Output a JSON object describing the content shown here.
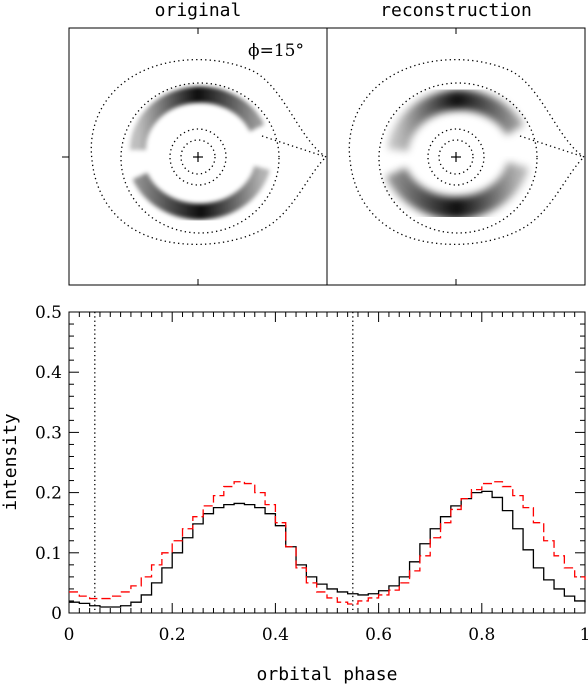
{
  "images": {
    "left_title": "original",
    "right_title": "reconstruction",
    "phase_annotation": "ϕ=15°"
  },
  "chart_data": {
    "type": "line",
    "title": "",
    "xlabel": "orbital phase",
    "ylabel": "intensity",
    "xlim": [
      0,
      1
    ],
    "ylim": [
      0,
      0.5
    ],
    "x_ticks": [
      "0",
      "0.2",
      "0.4",
      "0.6",
      "0.8",
      "1"
    ],
    "y_ticks": [
      "0",
      "0.1",
      "0.2",
      "0.3",
      "0.4",
      "0.5"
    ],
    "vertical_markers": [
      0.05,
      0.55
    ],
    "grid": false,
    "step": true,
    "series": [
      {
        "style": "solid",
        "color": "#000000",
        "x": [
          0.0,
          0.02,
          0.04,
          0.06,
          0.08,
          0.1,
          0.12,
          0.14,
          0.16,
          0.18,
          0.2,
          0.22,
          0.24,
          0.26,
          0.28,
          0.3,
          0.32,
          0.34,
          0.36,
          0.38,
          0.4,
          0.42,
          0.44,
          0.46,
          0.48,
          0.5,
          0.52,
          0.54,
          0.56,
          0.58,
          0.6,
          0.62,
          0.64,
          0.66,
          0.68,
          0.7,
          0.72,
          0.74,
          0.76,
          0.78,
          0.8,
          0.82,
          0.84,
          0.86,
          0.88,
          0.9,
          0.92,
          0.94,
          0.96,
          0.98,
          1.0
        ],
        "y": [
          0.018,
          0.016,
          0.012,
          0.01,
          0.01,
          0.012,
          0.018,
          0.03,
          0.05,
          0.075,
          0.1,
          0.125,
          0.148,
          0.165,
          0.175,
          0.18,
          0.182,
          0.18,
          0.175,
          0.165,
          0.145,
          0.11,
          0.08,
          0.06,
          0.048,
          0.04,
          0.035,
          0.032,
          0.03,
          0.032,
          0.037,
          0.045,
          0.06,
          0.085,
          0.115,
          0.14,
          0.16,
          0.178,
          0.19,
          0.2,
          0.202,
          0.192,
          0.17,
          0.14,
          0.105,
          0.075,
          0.055,
          0.04,
          0.028,
          0.02,
          0.018
        ]
      },
      {
        "style": "dashed",
        "color": "#ff0000",
        "x": [
          0.0,
          0.02,
          0.04,
          0.06,
          0.08,
          0.1,
          0.12,
          0.14,
          0.16,
          0.18,
          0.2,
          0.22,
          0.24,
          0.26,
          0.28,
          0.3,
          0.32,
          0.34,
          0.36,
          0.38,
          0.4,
          0.42,
          0.44,
          0.46,
          0.48,
          0.5,
          0.52,
          0.54,
          0.56,
          0.58,
          0.6,
          0.62,
          0.64,
          0.66,
          0.68,
          0.7,
          0.72,
          0.74,
          0.76,
          0.78,
          0.8,
          0.82,
          0.84,
          0.86,
          0.88,
          0.9,
          0.92,
          0.94,
          0.96,
          0.98,
          1.0
        ],
        "y": [
          0.035,
          0.028,
          0.024,
          0.024,
          0.028,
          0.035,
          0.045,
          0.06,
          0.08,
          0.1,
          0.12,
          0.14,
          0.16,
          0.178,
          0.195,
          0.21,
          0.218,
          0.215,
          0.2,
          0.18,
          0.15,
          0.11,
          0.075,
          0.05,
          0.035,
          0.025,
          0.018,
          0.015,
          0.02,
          0.025,
          0.03,
          0.038,
          0.05,
          0.07,
          0.095,
          0.125,
          0.15,
          0.172,
          0.19,
          0.205,
          0.215,
          0.218,
          0.21,
          0.195,
          0.175,
          0.15,
          0.12,
          0.095,
          0.075,
          0.06,
          0.055
        ]
      }
    ]
  }
}
